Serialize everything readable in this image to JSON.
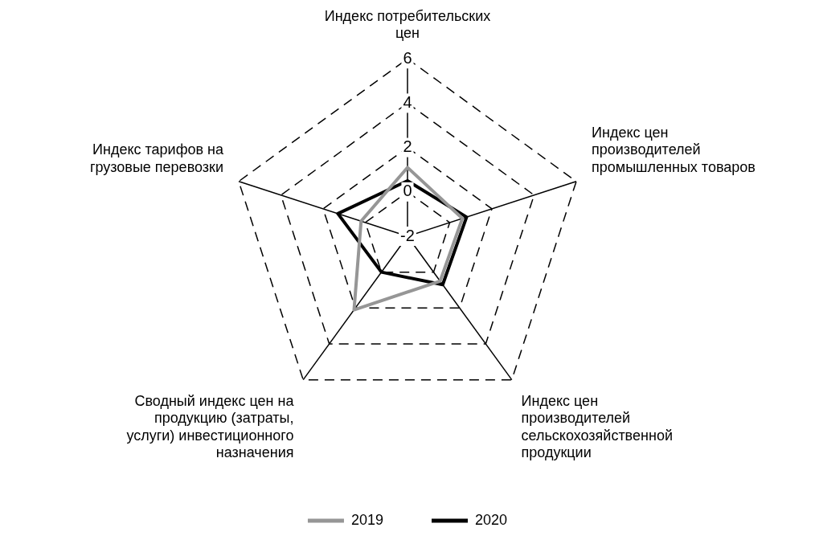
{
  "chart_data": {
    "type": "radar",
    "categories": [
      "Индекс потребительских цен",
      "Индекс цен производителей промышленных товаров",
      "Индекс цен производителей сельскохозяйственной продукции",
      "Сводный индекс цен на продукцию (затраты, услуги) инвестиционного назначения",
      "Индекс тарифов на грузовые перевозки"
    ],
    "series": [
      {
        "name": "2019",
        "color": "#969696",
        "values": [
          1.1,
          0.6,
          0.5,
          2.1,
          0.2
        ]
      },
      {
        "name": "2020",
        "color": "#000000",
        "values": [
          0.5,
          0.8,
          0.7,
          0.0,
          1.3
        ]
      }
    ],
    "ylim": [
      -2,
      6
    ],
    "yticks": [
      -2,
      0,
      2,
      4,
      6
    ],
    "grid": true,
    "legend": "bottom",
    "marker": "none",
    "line_style": "solid"
  }
}
